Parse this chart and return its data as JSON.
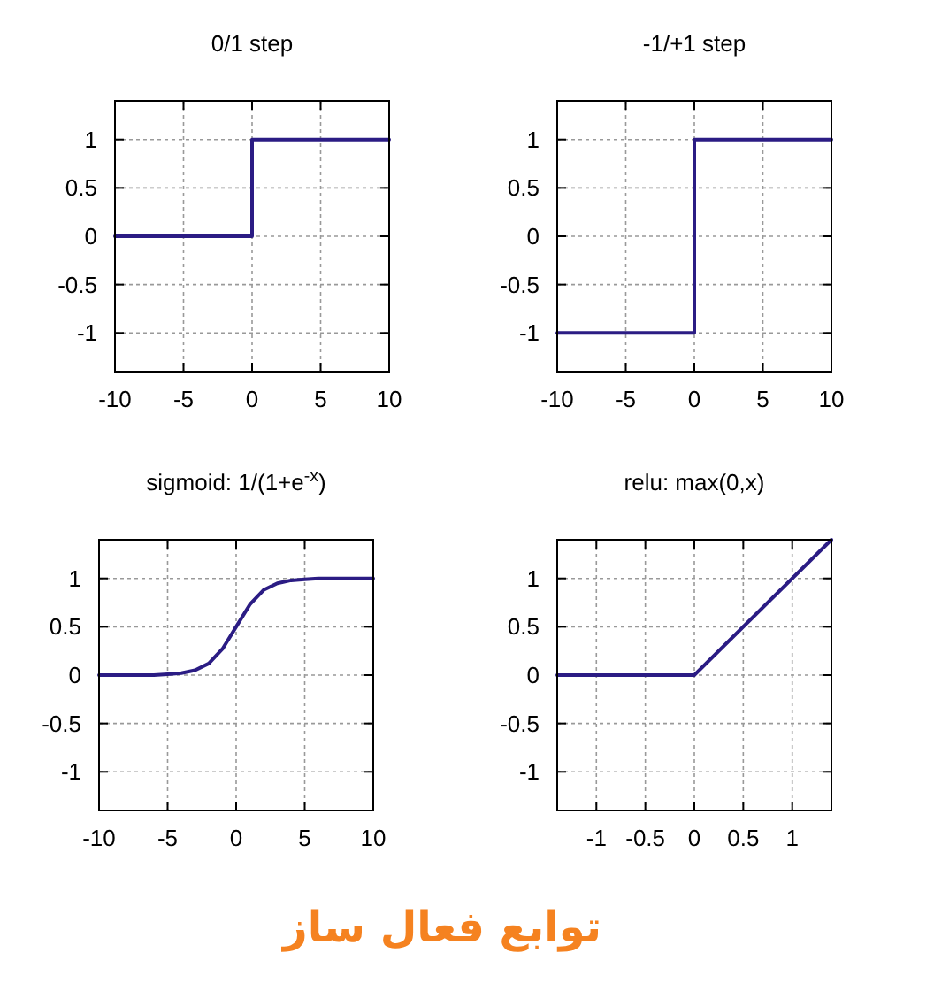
{
  "chart_data": [
    {
      "type": "line",
      "title": "0/1 step",
      "x": [
        -10,
        0,
        0,
        10
      ],
      "series": [
        {
          "color": "#2b1c84",
          "values": [
            0,
            0,
            1,
            1
          ]
        }
      ],
      "xlim": [
        -10,
        10
      ],
      "ylim": [
        -1.4,
        1.4
      ],
      "xticks": [
        -10,
        -5,
        0,
        5,
        10
      ],
      "yticks": [
        -1,
        -0.5,
        0,
        0.5,
        1
      ],
      "grid": true
    },
    {
      "type": "line",
      "title": "-1/+1 step",
      "x": [
        -10,
        0,
        0,
        10
      ],
      "series": [
        {
          "color": "#2b1c84",
          "values": [
            -1,
            -1,
            1,
            1
          ]
        }
      ],
      "xlim": [
        -10,
        10
      ],
      "ylim": [
        -1.4,
        1.4
      ],
      "xticks": [
        -10,
        -5,
        0,
        5,
        10
      ],
      "yticks": [
        -1,
        -0.5,
        0,
        0.5,
        1
      ],
      "grid": true
    },
    {
      "type": "line",
      "title": "sigmoid: 1/(1+e$^{-x}$)",
      "x": [
        -10,
        -6,
        -5,
        -4,
        -3,
        -2,
        -1,
        0,
        1,
        2,
        3,
        4,
        5,
        6,
        10
      ],
      "series": [
        {
          "color": "#2b1c84",
          "values": [
            0,
            0,
            0.01,
            0.02,
            0.05,
            0.12,
            0.27,
            0.5,
            0.73,
            0.88,
            0.95,
            0.98,
            0.99,
            1,
            1
          ]
        }
      ],
      "xlim": [
        -10,
        10
      ],
      "ylim": [
        -1.4,
        1.4
      ],
      "xticks": [
        -10,
        -5,
        0,
        5,
        10
      ],
      "yticks": [
        -1,
        -0.5,
        0,
        0.5,
        1
      ],
      "grid": true
    },
    {
      "type": "line",
      "title": "relu: max(0,x)",
      "x": [
        -1.4,
        0,
        1.4
      ],
      "series": [
        {
          "color": "#2b1c84",
          "values": [
            0,
            0,
            1.4
          ]
        }
      ],
      "xlim": [
        -1.4,
        1.4
      ],
      "ylim": [
        -1.4,
        1.4
      ],
      "xticks": [
        -1,
        -0.5,
        0,
        0.5,
        1
      ],
      "yticks": [
        -1,
        -0.5,
        0,
        0.5,
        1
      ],
      "grid": true,
      "annotations": [
        "توابع فعال ساز"
      ]
    }
  ]
}
